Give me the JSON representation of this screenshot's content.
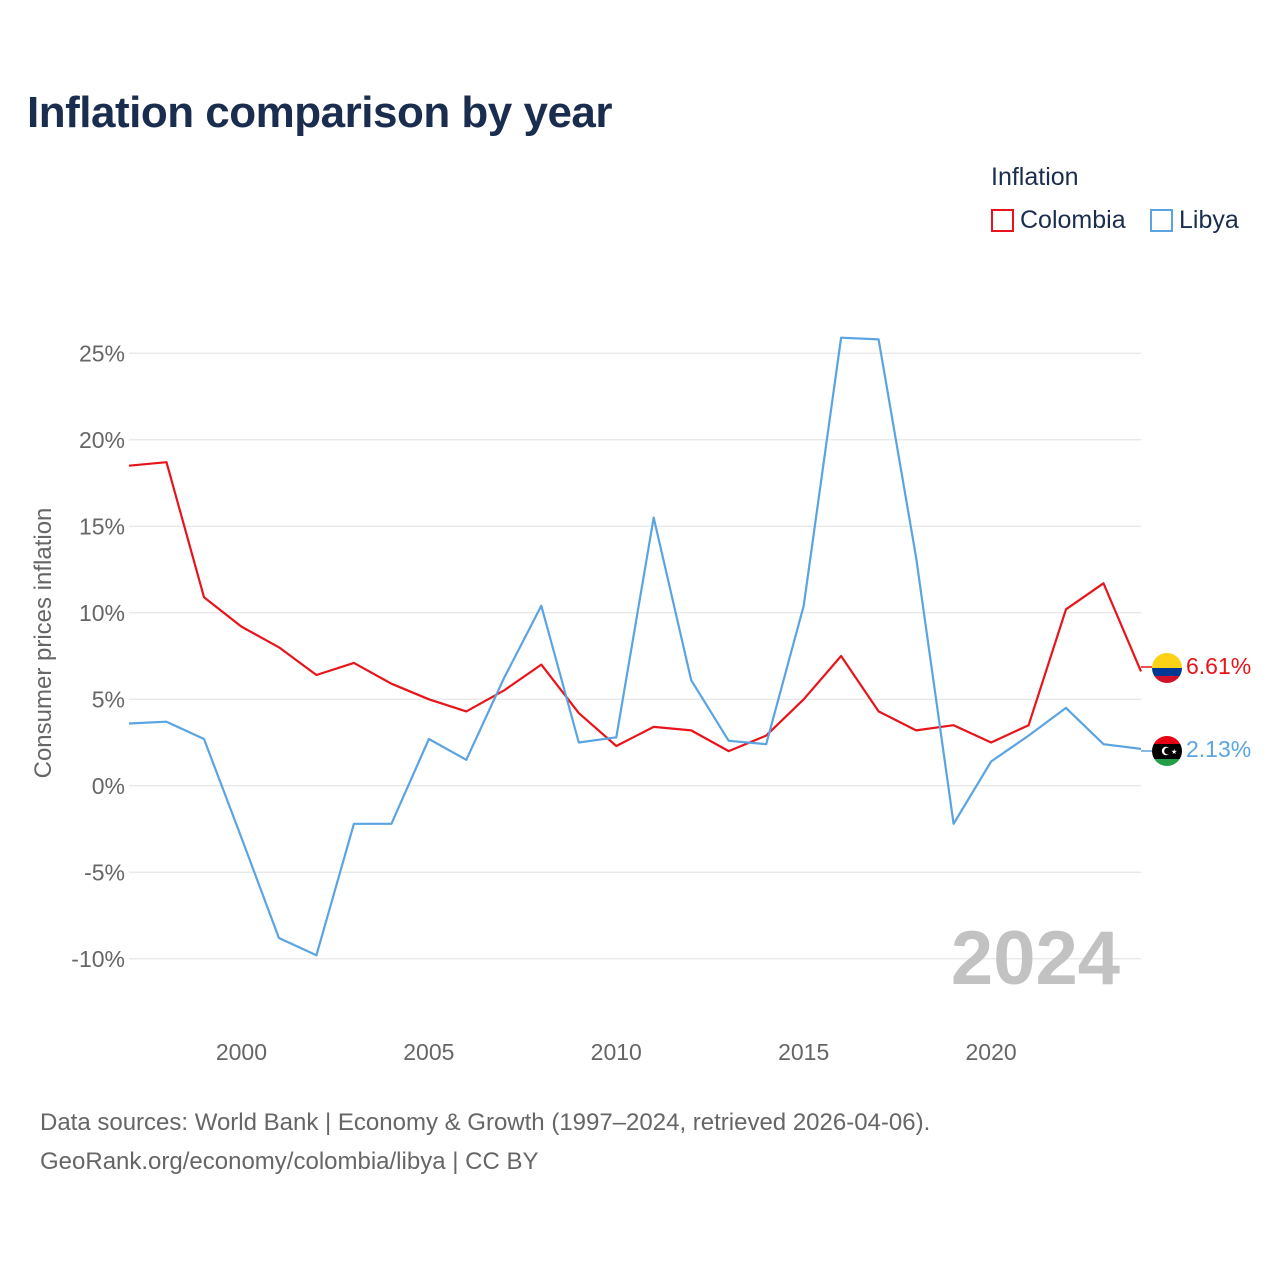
{
  "title": "Inflation comparison by year",
  "legend": {
    "title": "Inflation",
    "items": [
      {
        "label": "Colombia",
        "color": "#e8141b"
      },
      {
        "label": "Libya",
        "color": "#5aa4e2"
      }
    ]
  },
  "watermark_year": "2024",
  "source": {
    "line1": "Data sources: World Bank | Economy & Growth (1997–2024, retrieved 2026-04-06).",
    "line2": "GeoRank.org/economy/colombia/libya | CC BY"
  },
  "chart_data": {
    "type": "line",
    "title": "Inflation comparison by year",
    "xlabel": "",
    "ylabel": "Consumer prices inflation",
    "xlim": [
      1997,
      2024
    ],
    "ylim": [
      -12.5,
      27.5
    ],
    "grid": true,
    "legend_position": "top-right",
    "x_ticks": [
      2000,
      2005,
      2010,
      2015,
      2020
    ],
    "y_ticks": [
      {
        "value": 25,
        "label": "25%"
      },
      {
        "value": 20,
        "label": "20%"
      },
      {
        "value": 15,
        "label": "15%"
      },
      {
        "value": 10,
        "label": "10%"
      },
      {
        "value": 5,
        "label": "5%"
      },
      {
        "value": 0,
        "label": "0%"
      },
      {
        "value": -5,
        "label": "-5%"
      },
      {
        "value": -10,
        "label": "-10%"
      }
    ],
    "x": [
      1997,
      1998,
      1999,
      2000,
      2001,
      2002,
      2003,
      2004,
      2005,
      2006,
      2007,
      2008,
      2009,
      2010,
      2011,
      2012,
      2013,
      2014,
      2015,
      2016,
      2017,
      2018,
      2019,
      2020,
      2021,
      2022,
      2023,
      2024
    ],
    "series": [
      {
        "name": "Colombia",
        "color": "#e8141b",
        "end_label": "6.61%",
        "values": [
          18.5,
          18.7,
          10.9,
          9.2,
          8.0,
          6.4,
          7.1,
          5.9,
          5.0,
          4.3,
          5.5,
          7.0,
          4.2,
          2.3,
          3.4,
          3.2,
          2.0,
          2.9,
          5.0,
          7.5,
          4.3,
          3.2,
          3.5,
          2.5,
          3.5,
          10.2,
          11.7,
          6.61
        ]
      },
      {
        "name": "Libya",
        "color": "#5aa4e2",
        "end_label": "2.13%",
        "values": [
          3.6,
          3.7,
          2.7,
          -3.0,
          -8.8,
          -9.8,
          -2.2,
          -2.2,
          2.7,
          1.5,
          6.2,
          10.4,
          2.5,
          2.8,
          15.5,
          6.1,
          2.6,
          2.4,
          10.4,
          25.9,
          25.8,
          13.2,
          -2.2,
          1.4,
          2.9,
          4.5,
          2.4,
          2.13
        ]
      }
    ]
  }
}
